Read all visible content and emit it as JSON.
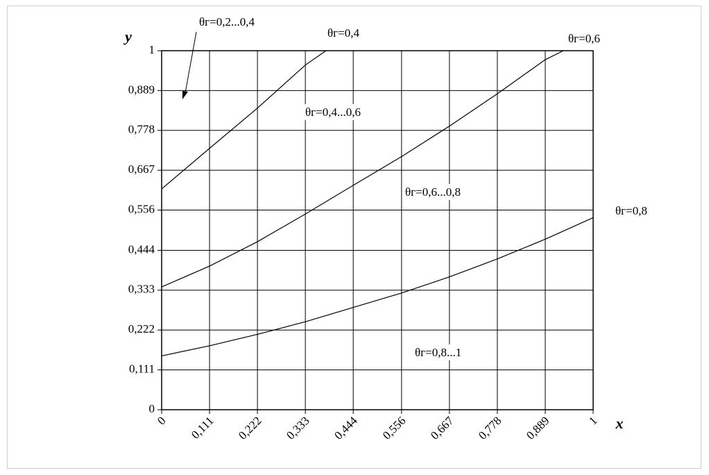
{
  "chart_data": {
    "type": "line",
    "xlabel": "x",
    "ylabel": "y",
    "xlim": [
      0,
      1
    ],
    "ylim": [
      0,
      1
    ],
    "xticks": [
      0,
      {
        "value": 0.111,
        "label": "0,111"
      },
      {
        "value": 0.222,
        "label": "0,222"
      },
      {
        "value": 0.333,
        "label": "0,333"
      },
      {
        "value": 0.444,
        "label": "0,444"
      },
      {
        "value": 0.556,
        "label": "0,556"
      },
      {
        "value": 0.667,
        "label": "0,667"
      },
      {
        "value": 0.778,
        "label": "0,778"
      },
      {
        "value": 0.889,
        "label": "0,889"
      },
      1
    ],
    "yticks": [
      0,
      {
        "value": 0.111,
        "label": "0,111"
      },
      {
        "value": 0.222,
        "label": "0,222"
      },
      {
        "value": 0.333,
        "label": "0,333"
      },
      {
        "value": 0.444,
        "label": "0,444"
      },
      {
        "value": 0.556,
        "label": "0,556"
      },
      {
        "value": 0.667,
        "label": "0,667"
      },
      {
        "value": 0.778,
        "label": "0,778"
      },
      {
        "value": 0.889,
        "label": "0,889"
      },
      1
    ],
    "grid": true,
    "color": "#000000",
    "series": [
      {
        "x": [
          0,
          0.111,
          0.222,
          0.333,
          0.381
        ],
        "values": [
          0.615,
          0.728,
          0.84,
          0.96,
          1
        ]
      },
      {
        "x": [
          0,
          0.111,
          0.222,
          0.333,
          0.444,
          0.556,
          0.667,
          0.778,
          0.889,
          0.931
        ],
        "values": [
          0.342,
          0.4,
          0.468,
          0.545,
          0.625,
          0.705,
          0.79,
          0.88,
          0.975,
          1
        ]
      },
      {
        "x": [
          0,
          0.111,
          0.222,
          0.333,
          0.444,
          0.556,
          0.667,
          0.778,
          0.889,
          1
        ],
        "values": [
          0.15,
          0.178,
          0.21,
          0.245,
          0.285,
          0.325,
          0.37,
          0.42,
          0.475,
          0.535
        ]
      }
    ],
    "annotations": [
      "θг=0,2...0,4",
      "θг=0,4",
      "θг=0,6",
      "θг=0,4...0,6",
      "θг=0,6...0,8",
      "θг=0,8",
      "θг=0,8...1"
    ]
  }
}
